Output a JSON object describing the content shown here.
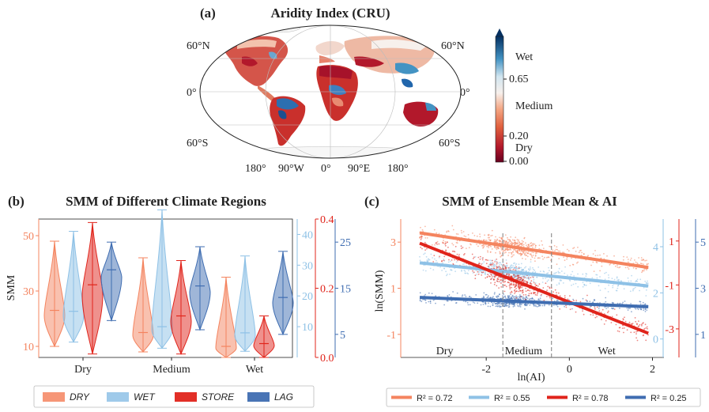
{
  "panel_a": {
    "label": "(a)",
    "title": "Aridity Index (CRU)",
    "lat_left": [
      "60°N",
      "0°",
      "60°S"
    ],
    "lat_right": [
      "60°N",
      "0°",
      "60°S"
    ],
    "lon": [
      "180°",
      "90°W",
      "0°",
      "90°E",
      "180°"
    ],
    "colorbar": {
      "wet": "Wet",
      "v065": "0.65",
      "medium": "Medium",
      "v020": "0.20",
      "dry": "Dry",
      "v000": "0.00"
    },
    "colors": {
      "dry": "#b2182b",
      "mid": "#f7f7f7",
      "wet": "#2166ac"
    }
  },
  "chart_data": [
    {
      "type": "violin",
      "label": "(b)",
      "title": "SMM of Different Climate Regions",
      "ylabel": "SMM",
      "categories": [
        "Dry",
        "Medium",
        "Wet"
      ],
      "axes": {
        "DRY": {
          "ticks": [
            "10",
            "30",
            "50"
          ],
          "ylim": [
            6,
            56
          ],
          "color": "#f4845f"
        },
        "WET": {
          "ticks": [
            "10",
            "20",
            "30",
            "40"
          ],
          "ylim": [
            0,
            45
          ],
          "color": "#8ec1e6"
        },
        "STORE": {
          "ticks": [
            "0.0",
            "0.2",
            "0.4"
          ],
          "ylim": [
            0,
            0.4
          ],
          "color": "#e0241b"
        },
        "LAG": {
          "ticks": [
            "5",
            "15",
            "25"
          ],
          "ylim": [
            0,
            30
          ],
          "color": "#3f6db1"
        }
      },
      "series": [
        {
          "name": "DRY",
          "color": "#f4845f",
          "dist": [
            {
              "min": 10,
              "max": 48,
              "median": 23
            },
            {
              "min": 8,
              "max": 42,
              "median": 15
            },
            {
              "min": 6,
              "max": 35,
              "median": 10
            }
          ]
        },
        {
          "name": "WET",
          "color": "#8ec1e6",
          "dist": [
            {
              "min": 5,
              "max": 41,
              "median": 15
            },
            {
              "min": 3,
              "max": 48,
              "median": 10
            },
            {
              "min": 2,
              "max": 33,
              "median": 8
            }
          ]
        },
        {
          "name": "STORE",
          "color": "#e0241b",
          "dist": [
            {
              "min": 0.01,
              "max": 0.39,
              "median": 0.21
            },
            {
              "min": 0.01,
              "max": 0.28,
              "median": 0.12
            },
            {
              "min": 0.0,
              "max": 0.12,
              "median": 0.04
            }
          ]
        },
        {
          "name": "LAG",
          "color": "#3f6db1",
          "dist": [
            {
              "min": 8,
              "max": 25,
              "median": 19
            },
            {
              "min": 6,
              "max": 24,
              "median": 15.5
            },
            {
              "min": 5,
              "max": 23,
              "median": 13
            }
          ]
        }
      ],
      "legend": [
        "DRY",
        "WET",
        "STORE",
        "LAG"
      ]
    },
    {
      "type": "scatter",
      "label": "(c)",
      "title": "SMM of Ensemble Mean & AI",
      "xlabel": "ln(AI)",
      "ylabel": "ln(SMM)",
      "xticks": [
        "-2",
        "0",
        "2"
      ],
      "xlim": [
        -4.0,
        2.2
      ],
      "zones": [
        "Dry",
        "Medium",
        "Wet"
      ],
      "zone_boundaries": [
        -1.6,
        -0.43
      ],
      "axes": {
        "DRY": {
          "ticks": [
            "-1",
            "1",
            "3"
          ],
          "ylim": [
            -2,
            4
          ],
          "color": "#f4845f"
        },
        "WET": {
          "ticks": [
            "0",
            "2",
            "4"
          ],
          "ylim": [
            -0.8,
            5.2
          ],
          "color": "#8ec1e6"
        },
        "STORE": {
          "ticks": [
            "-3",
            "-1",
            "1"
          ],
          "ylim": [
            -4.3,
            2.0
          ],
          "color": "#e0241b"
        },
        "LAG": {
          "ticks": [
            "1",
            "3",
            "5"
          ],
          "ylim": [
            0,
            6
          ],
          "color": "#3f6db1"
        }
      },
      "series": [
        {
          "name": "DRY",
          "color": "#f4845f",
          "r2": "R² = 0.72",
          "line": [
            [
              -3.6,
              3.4
            ],
            [
              1.9,
              1.9
            ]
          ]
        },
        {
          "name": "WET",
          "color": "#8ec1e6",
          "r2": "R² = 0.55",
          "line": [
            [
              -3.6,
              3.3
            ],
            [
              1.9,
              2.3
            ]
          ]
        },
        {
          "name": "STORE",
          "color": "#e0241b",
          "r2": "R² = 0.78",
          "line": [
            [
              -3.6,
              0.9
            ],
            [
              1.9,
              -3.2
            ]
          ]
        },
        {
          "name": "LAG",
          "color": "#3f6db1",
          "r2": "R² = 0.25",
          "line": [
            [
              -3.6,
              2.6
            ],
            [
              1.9,
              2.2
            ]
          ]
        }
      ]
    }
  ]
}
